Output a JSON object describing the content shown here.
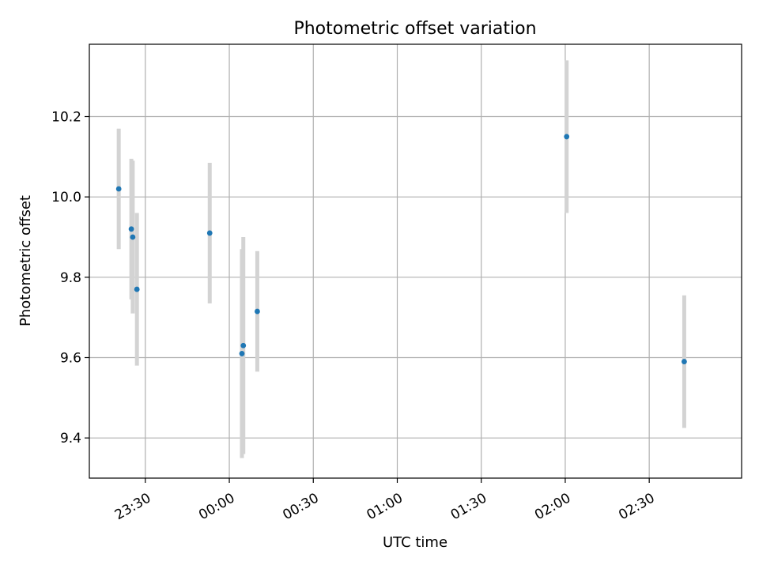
{
  "chart_data": {
    "type": "scatter",
    "title": "Photometric offset variation",
    "xlabel": "UTC time",
    "ylabel": "Photometric offset",
    "x_axis_kind": "time",
    "x_axis_format": "HH:MM",
    "xlim": [
      "2000-01-01T23:10:00",
      "2000-01-02T03:03:00"
    ],
    "ylim": [
      9.3,
      10.38
    ],
    "x_ticks": [
      "2000-01-01T23:30:00",
      "2000-01-02T00:00:00",
      "2000-01-02T00:30:00",
      "2000-01-02T01:00:00",
      "2000-01-02T01:30:00",
      "2000-01-02T02:00:00",
      "2000-01-02T02:30:00"
    ],
    "x_tick_labels": [
      "23:30",
      "00:00",
      "00:30",
      "01:00",
      "01:30",
      "02:00",
      "02:30"
    ],
    "y_ticks": [
      9.4,
      9.6,
      9.8,
      10.0,
      10.2
    ],
    "y_tick_labels": [
      "9.4",
      "9.6",
      "9.8",
      "10.0",
      "10.2"
    ],
    "grid": true,
    "legend": "none",
    "series": [
      {
        "marker_color": "#1f77b4",
        "errorbar_color": "#d3d3d3",
        "points": [
          {
            "x": "2000-01-01T23:20:30",
            "y": 10.02,
            "err": 0.15
          },
          {
            "x": "2000-01-01T23:25:00",
            "y": 9.92,
            "err": 0.175
          },
          {
            "x": "2000-01-01T23:25:30",
            "y": 9.9,
            "err": 0.19
          },
          {
            "x": "2000-01-01T23:27:00",
            "y": 9.77,
            "err": 0.19
          },
          {
            "x": "2000-01-01T23:53:00",
            "y": 9.91,
            "err": 0.175
          },
          {
            "x": "2000-01-02T00:04:30",
            "y": 9.61,
            "err": 0.26
          },
          {
            "x": "2000-01-02T00:05:00",
            "y": 9.63,
            "err": 0.27
          },
          {
            "x": "2000-01-02T00:10:00",
            "y": 9.715,
            "err": 0.15
          },
          {
            "x": "2000-01-02T02:00:30",
            "y": 10.15,
            "err": 0.19
          },
          {
            "x": "2000-01-02T02:42:30",
            "y": 9.59,
            "err": 0.165
          }
        ]
      }
    ]
  }
}
